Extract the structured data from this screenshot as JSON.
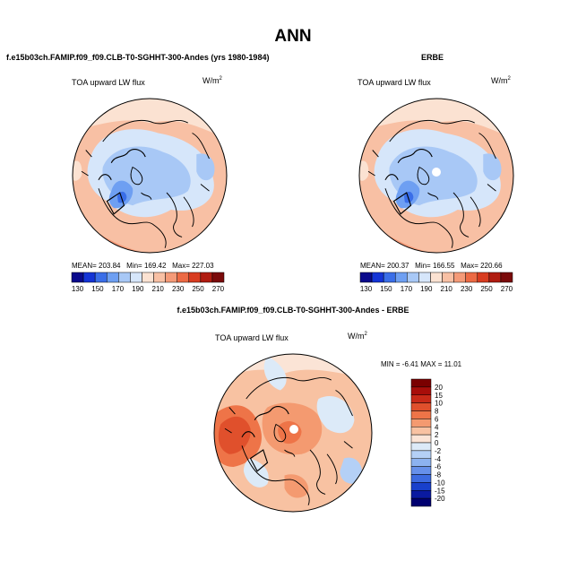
{
  "page": {
    "title": "ANN"
  },
  "panels": [
    {
      "case_label": "f.e15b03ch.FAMIP.f09_f09.CLB-T0-SGHHT-300-Andes (yrs 1980-1984)",
      "variable_label": "TOA upward LW flux",
      "units": "W/m",
      "units_exp": "2",
      "stats": {
        "mean": "MEAN= 203.84",
        "min": "Min= 169.42",
        "max": "Max= 227.03"
      }
    },
    {
      "case_label": "ERBE",
      "variable_label": "TOA upward LW flux",
      "units": "W/m",
      "units_exp": "2",
      "stats": {
        "mean": "MEAN= 200.37",
        "min": "Min= 166.55",
        "max": "Max= 220.66"
      }
    }
  ],
  "diff_panel": {
    "case_label": "f.e15b03ch.FAMIP.f09_f09.CLB-T0-SGHHT-300-Andes - ERBE",
    "variable_label": "TOA upward LW flux",
    "units": "W/m",
    "units_exp": "2",
    "stats": "MIN = -6.41 MAX = 11.01"
  },
  "colorbar_abs": {
    "labels": [
      "130",
      "150",
      "170",
      "190",
      "210",
      "230",
      "250",
      "270"
    ],
    "colors": [
      "#0a0a8c",
      "#1434d6",
      "#3a6ee8",
      "#6e9ff2",
      "#a8c8f6",
      "#d6e6fa",
      "#fbe2d2",
      "#f8c0a4",
      "#f49a78",
      "#ec6a44",
      "#d83c20",
      "#b01c10",
      "#7a0a0a"
    ]
  },
  "colorbar_diff": {
    "labels": [
      "20",
      "15",
      "10",
      "8",
      "6",
      "4",
      "2",
      "0",
      "-2",
      "-4",
      "-6",
      "-8",
      "-10",
      "-15",
      "-20"
    ],
    "colors": [
      "#7a0000",
      "#a80e0a",
      "#c82a18",
      "#e0502c",
      "#ee7448",
      "#f49a70",
      "#f8c2a2",
      "#fbe4d6",
      "#dceaf8",
      "#b4d0f6",
      "#8cb2f0",
      "#6690ea",
      "#3c6ae0",
      "#1840cc",
      "#0a1aa0",
      "#000070"
    ]
  }
}
